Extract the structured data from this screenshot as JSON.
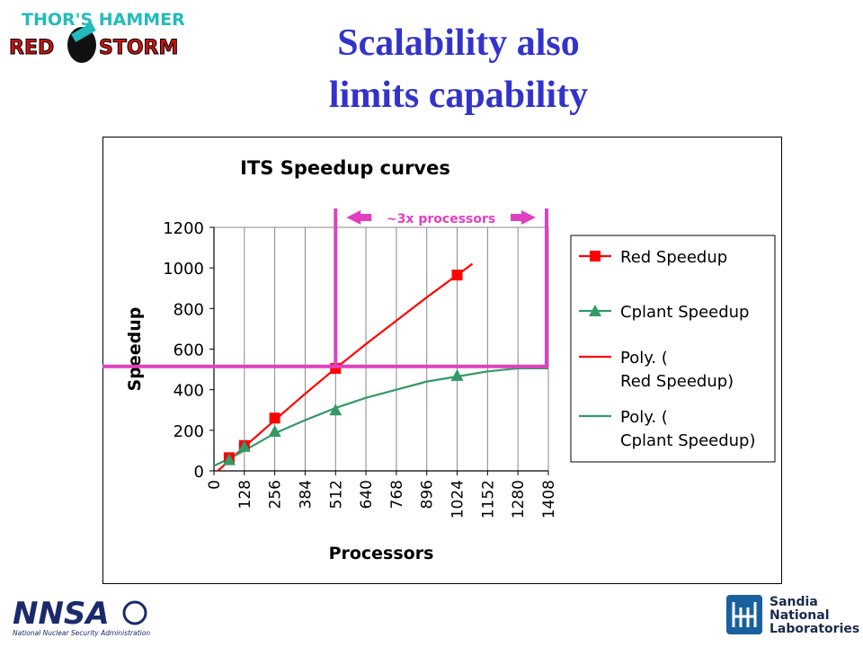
{
  "slide": {
    "title_line1": "Scalability also",
    "title_line2": "limits capability"
  },
  "logos": {
    "top_left": "THOR'S HAMMER RED STORM",
    "bottom_left": "NNSA National Nuclear Security Administration",
    "bottom_right": "Sandia National Laboratories"
  },
  "chart_data": {
    "type": "scatter",
    "title": "ITS Speedup curves",
    "xlabel": "Processors",
    "ylabel": "Speedup",
    "xlim": [
      0,
      1408
    ],
    "ylim": [
      0,
      1200
    ],
    "x_ticks": [
      "0",
      "128",
      "256",
      "384",
      "512",
      "640",
      "768",
      "896",
      "1024",
      "1152",
      "1280",
      "1408"
    ],
    "y_ticks": [
      "0",
      "200",
      "400",
      "600",
      "800",
      "1000",
      "1200"
    ],
    "grid": "vertical",
    "legend": "right",
    "series": [
      {
        "name": "Red Speedup",
        "marker": "square",
        "color": "#ff0000",
        "x": [
          64,
          128,
          256,
          512,
          1024
        ],
        "y": [
          65,
          125,
          260,
          505,
          965
        ]
      },
      {
        "name": "Cplant Speedup",
        "marker": "triangle",
        "color": "#339966",
        "x": [
          64,
          128,
          256,
          512,
          1024
        ],
        "y": [
          55,
          120,
          195,
          300,
          470
        ]
      },
      {
        "name": "Poly. (Red Speedup)",
        "marker": "line",
        "color": "#ff0000",
        "x": [
          16,
          128,
          256,
          384,
          512,
          640,
          768,
          896,
          1024,
          1088
        ],
        "y": [
          0,
          118,
          250,
          380,
          505,
          625,
          740,
          855,
          965,
          1020
        ]
      },
      {
        "name": "Poly. (Cplant Speedup)",
        "marker": "line",
        "color": "#339966",
        "x": [
          0,
          64,
          128,
          256,
          384,
          512,
          640,
          768,
          896,
          1024,
          1152,
          1280,
          1408
        ],
        "y": [
          25,
          60,
          100,
          185,
          250,
          310,
          360,
          400,
          440,
          465,
          490,
          505,
          505
        ]
      }
    ],
    "annotation": {
      "text": "~3x processors",
      "color": "#e040c0",
      "x_left": 512,
      "x_right": 1408,
      "y_level": 515
    }
  }
}
